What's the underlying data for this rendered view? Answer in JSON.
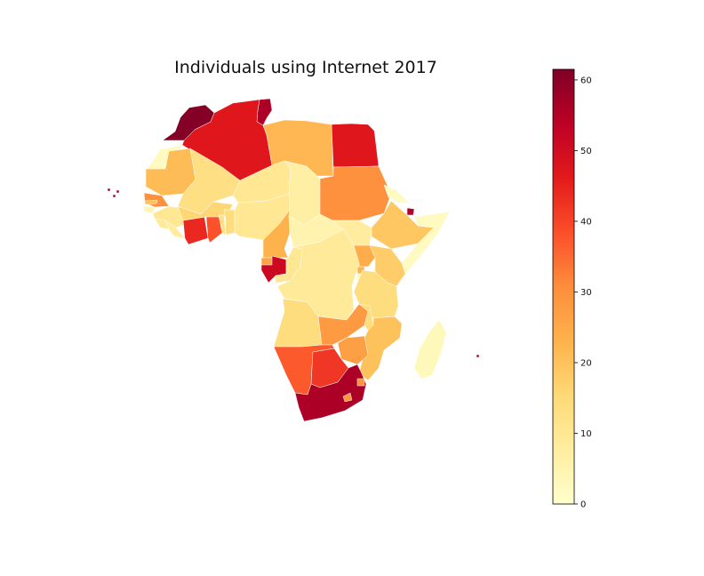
{
  "chart_data": {
    "type": "choropleth",
    "title": "Individuals using Internet  2017",
    "colormap": "YlOrRd",
    "colorbar": {
      "min": 0,
      "max": 61.5,
      "ticks": [
        0,
        10,
        20,
        30,
        40,
        50,
        60
      ],
      "tick_labels": [
        "0",
        "10",
        "20",
        "30",
        "40",
        "50",
        "60"
      ],
      "stops": [
        "#ffffcc",
        "#ffeda0",
        "#fed976",
        "#feb24c",
        "#fd8d3c",
        "#fc4e2a",
        "#e31a1c",
        "#bd0026",
        "#800026"
      ]
    },
    "regions": [
      {
        "name": "Morocco",
        "value": 61
      },
      {
        "name": "Tunisia",
        "value": 56
      },
      {
        "name": "Algeria",
        "value": 47
      },
      {
        "name": "Libya",
        "value": 22
      },
      {
        "name": "Egypt",
        "value": 47
      },
      {
        "name": "Western Sahara",
        "value": 2
      },
      {
        "name": "Mauritania",
        "value": 21
      },
      {
        "name": "Mali",
        "value": 13
      },
      {
        "name": "Niger",
        "value": 10
      },
      {
        "name": "Chad",
        "value": 7
      },
      {
        "name": "Sudan",
        "value": 30
      },
      {
        "name": "Eritrea",
        "value": 2
      },
      {
        "name": "Djibouti",
        "value": 55
      },
      {
        "name": "Senegal",
        "value": 30
      },
      {
        "name": "Gambia",
        "value": 20
      },
      {
        "name": "Guinea-Bissau",
        "value": 4
      },
      {
        "name": "Guinea",
        "value": 10
      },
      {
        "name": "Sierra Leone",
        "value": 9
      },
      {
        "name": "Liberia",
        "value": 8
      },
      {
        "name": "Côte d'Ivoire",
        "value": 44
      },
      {
        "name": "Ghana",
        "value": 38
      },
      {
        "name": "Burkina Faso",
        "value": 16
      },
      {
        "name": "Togo",
        "value": 12
      },
      {
        "name": "Benin",
        "value": 14
      },
      {
        "name": "Nigeria",
        "value": 10
      },
      {
        "name": "Cameroon",
        "value": 23
      },
      {
        "name": "Central African Republic",
        "value": 5
      },
      {
        "name": "South Sudan",
        "value": 8
      },
      {
        "name": "Ethiopia",
        "value": 19
      },
      {
        "name": "Somalia",
        "value": 2
      },
      {
        "name": "Equatorial Guinea",
        "value": 26
      },
      {
        "name": "Gabon",
        "value": 51
      },
      {
        "name": "Congo",
        "value": 10
      },
      {
        "name": "Democratic Republic of the Congo",
        "value": 9
      },
      {
        "name": "Uganda",
        "value": 24
      },
      {
        "name": "Kenya",
        "value": 18
      },
      {
        "name": "Rwanda",
        "value": 22
      },
      {
        "name": "Burundi",
        "value": 3
      },
      {
        "name": "Tanzania",
        "value": 14
      },
      {
        "name": "Angola",
        "value": 14
      },
      {
        "name": "Zambia",
        "value": 28
      },
      {
        "name": "Malawi",
        "value": 14
      },
      {
        "name": "Mozambique",
        "value": 20
      },
      {
        "name": "Zimbabwe",
        "value": 27
      },
      {
        "name": "Namibia",
        "value": 37
      },
      {
        "name": "Botswana",
        "value": 42
      },
      {
        "name": "South Africa",
        "value": 56
      },
      {
        "name": "Lesotho",
        "value": 29
      },
      {
        "name": "Eswatini",
        "value": 30
      },
      {
        "name": "Madagascar",
        "value": 3
      },
      {
        "name": "Cabo Verde",
        "value": 57
      },
      {
        "name": "Mauritius",
        "value": 55
      }
    ]
  }
}
